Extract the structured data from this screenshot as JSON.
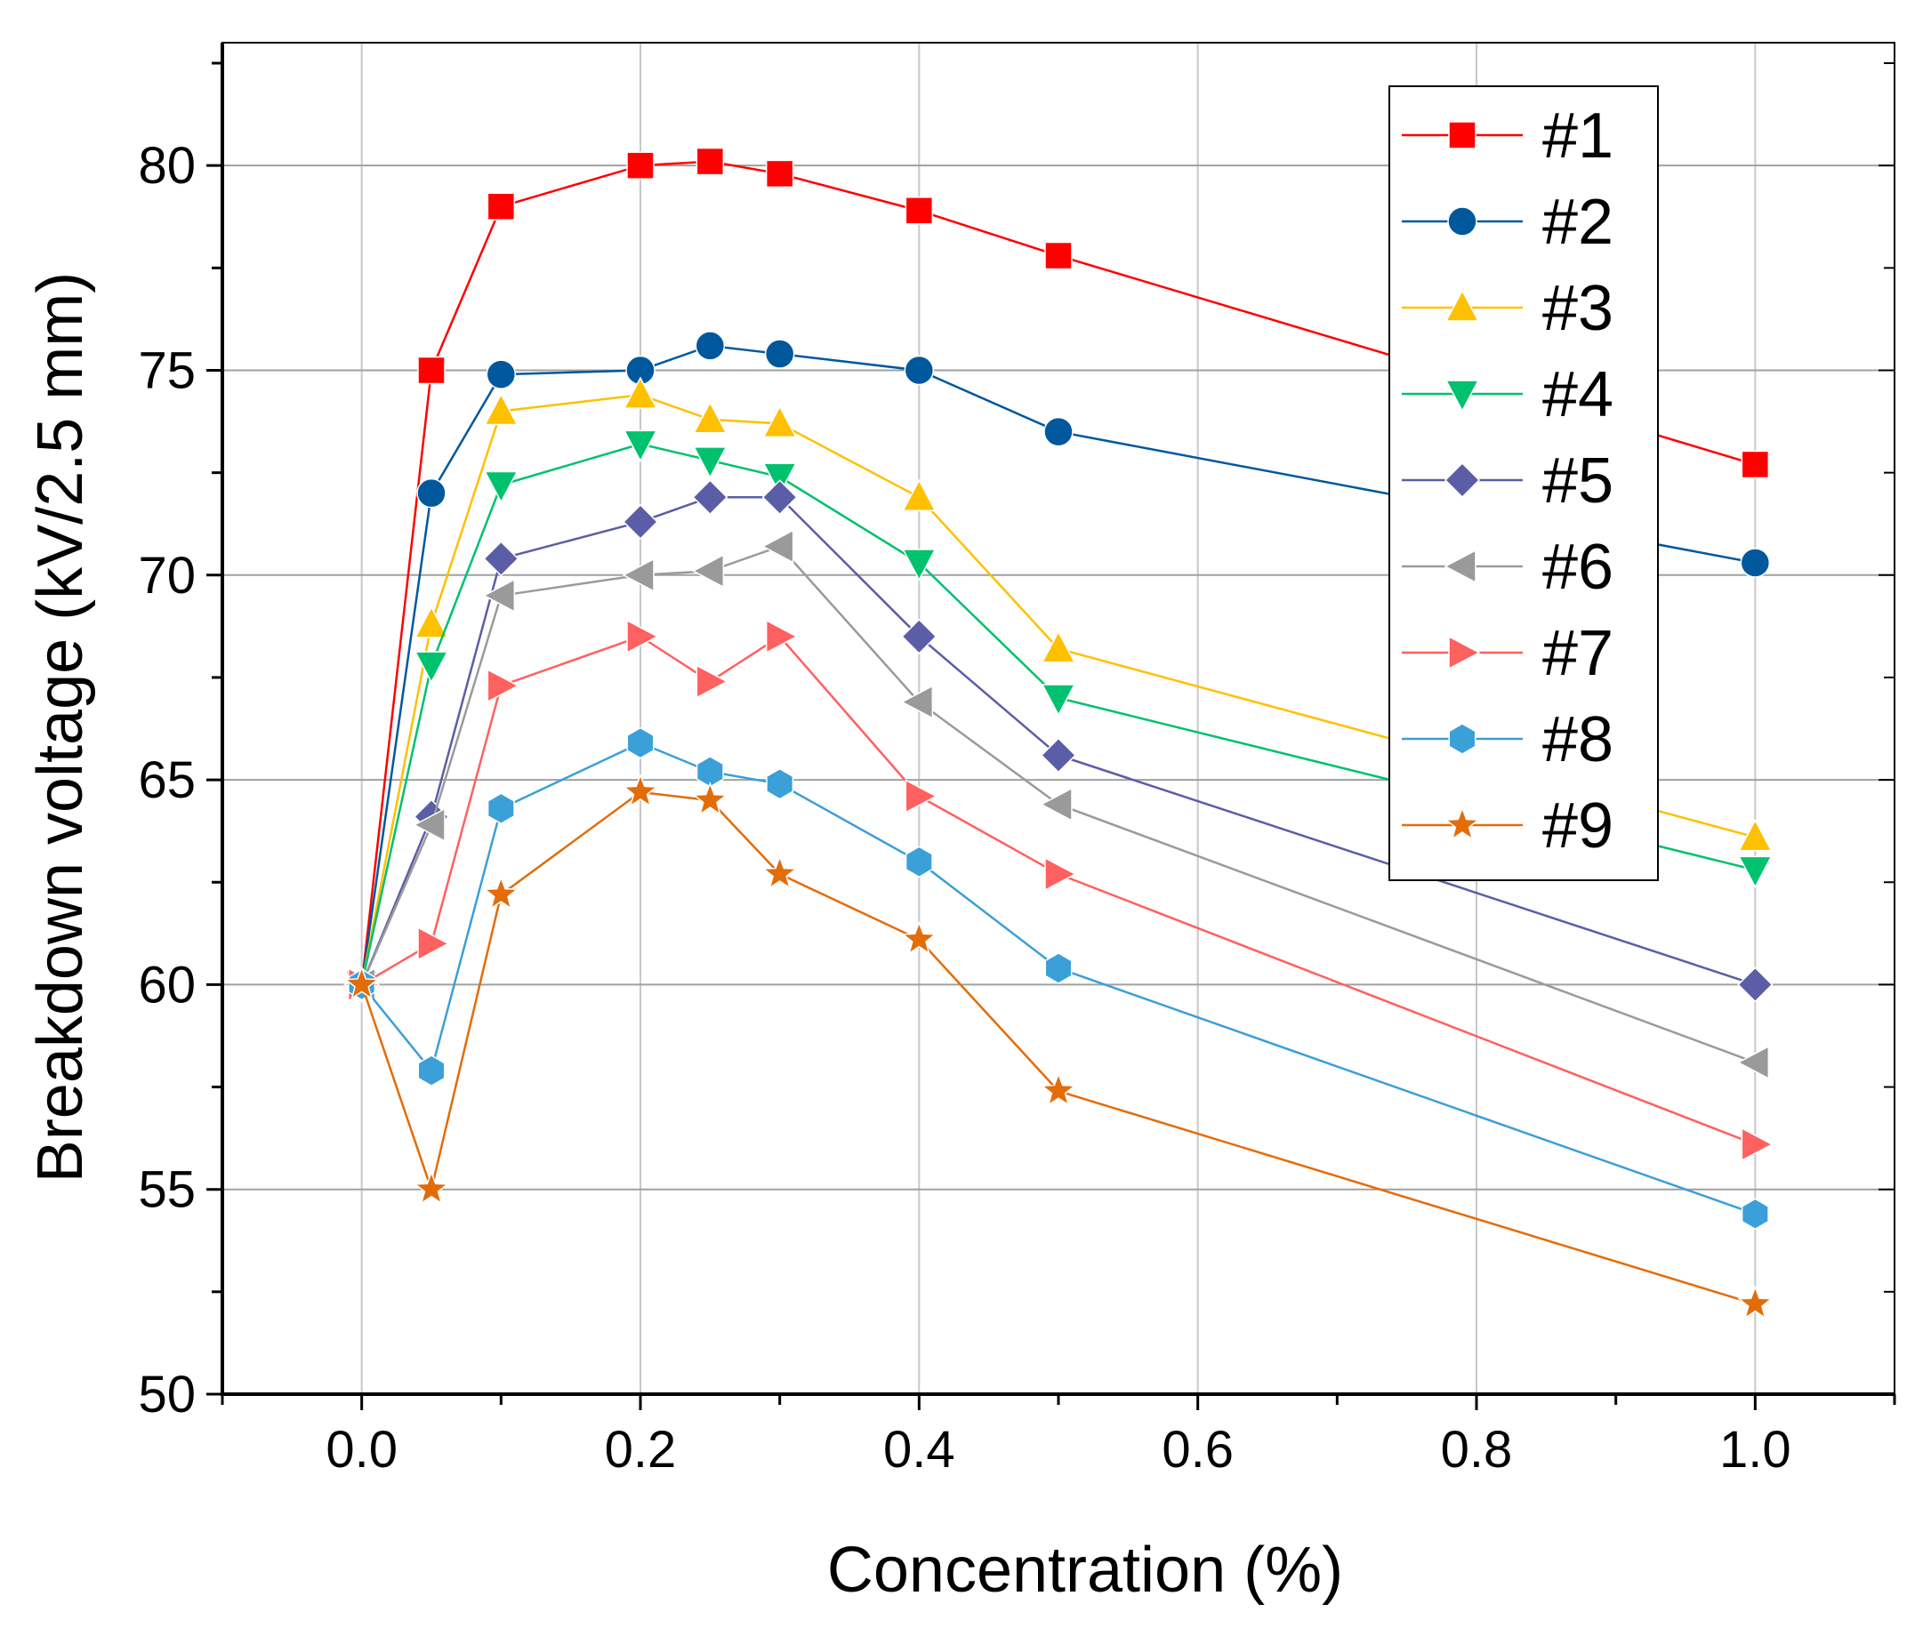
{
  "chart_data": {
    "type": "line",
    "xlabel": "Concentration (%)",
    "ylabel": "Breakdown voltage (kV/2.5 mm)",
    "xlim": [
      -0.1,
      1.1
    ],
    "ylim": [
      50,
      83
    ],
    "x_ticks": [
      0.0,
      0.2,
      0.4,
      0.6,
      0.8,
      1.0
    ],
    "x_tick_labels": [
      "0.0",
      "0.2",
      "0.4",
      "0.6",
      "0.8",
      "1.0"
    ],
    "y_ticks": [
      50,
      55,
      60,
      65,
      70,
      75,
      80
    ],
    "y_tick_labels": [
      "50",
      "55",
      "60",
      "65",
      "70",
      "75",
      "80"
    ],
    "grid": true,
    "legend_position": "top-right",
    "x": [
      0,
      0.05,
      0.1,
      0.2,
      0.25,
      0.3,
      0.4,
      0.5,
      1.0
    ],
    "series": [
      {
        "name": "#1",
        "color": "#ff0000",
        "marker": "square",
        "values": [
          60.0,
          75.0,
          79.0,
          80.0,
          80.1,
          79.8,
          78.9,
          77.8,
          72.7
        ]
      },
      {
        "name": "#2",
        "color": "#00589c",
        "marker": "circle",
        "values": [
          60.0,
          72.0,
          74.9,
          75.0,
          75.6,
          75.4,
          75.0,
          73.5,
          70.3
        ]
      },
      {
        "name": "#3",
        "color": "#ffc000",
        "marker": "triangle-up",
        "values": [
          60.0,
          68.8,
          74.0,
          74.4,
          73.8,
          73.7,
          71.9,
          68.2,
          63.6
        ]
      },
      {
        "name": "#4",
        "color": "#00c16e",
        "marker": "triangle-down",
        "values": [
          60.0,
          67.8,
          72.2,
          73.2,
          72.8,
          72.4,
          70.3,
          67.0,
          62.8
        ]
      },
      {
        "name": "#5",
        "color": "#5b5ea6",
        "marker": "diamond",
        "values": [
          60.0,
          64.1,
          70.4,
          71.3,
          71.9,
          71.9,
          68.5,
          65.6,
          60.0
        ]
      },
      {
        "name": "#6",
        "color": "#9a9a9a",
        "marker": "triangle-left",
        "values": [
          60.0,
          63.9,
          69.5,
          70.0,
          70.1,
          70.7,
          66.9,
          64.4,
          58.1
        ]
      },
      {
        "name": "#7",
        "color": "#ff6060",
        "marker": "triangle-right",
        "values": [
          60.0,
          61.0,
          67.3,
          68.5,
          67.4,
          68.5,
          64.6,
          62.7,
          56.1
        ]
      },
      {
        "name": "#8",
        "color": "#3b9fd8",
        "marker": "hexagon",
        "values": [
          60.0,
          57.9,
          64.3,
          65.9,
          65.2,
          64.9,
          63.0,
          60.4,
          54.4
        ]
      },
      {
        "name": "#9",
        "color": "#e36c09",
        "marker": "star",
        "values": [
          60.0,
          55.0,
          62.2,
          64.7,
          64.5,
          62.7,
          61.1,
          57.4,
          52.2
        ]
      }
    ]
  }
}
